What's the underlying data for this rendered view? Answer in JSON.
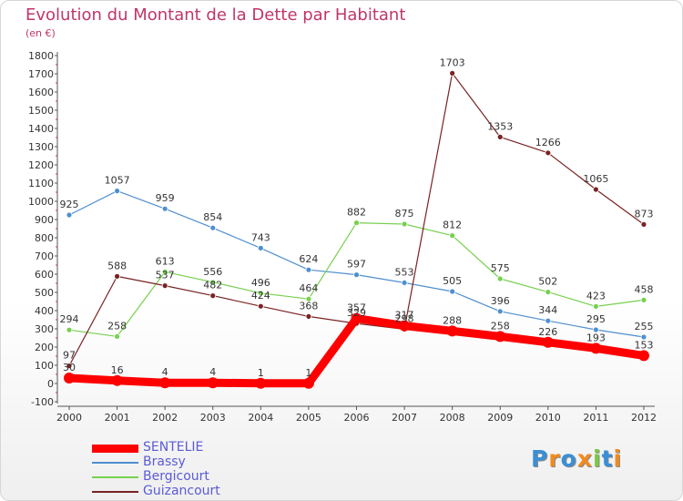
{
  "chart_data": {
    "type": "line",
    "title": "Evolution du Montant de la Dette par Habitant",
    "subtitle": "(en €)",
    "x": [
      "2000",
      "2001",
      "2002",
      "2003",
      "2004",
      "2005",
      "2006",
      "2007",
      "2008",
      "2009",
      "2010",
      "2011",
      "2012"
    ],
    "ylim": [
      -100,
      1800
    ],
    "yticks": [
      -100,
      0,
      100,
      200,
      300,
      400,
      500,
      600,
      700,
      800,
      900,
      1000,
      1100,
      1200,
      1300,
      1400,
      1500,
      1600,
      1700,
      1800
    ],
    "grid": false,
    "legend_position": "bottom-left",
    "series": [
      {
        "name": "SENTELIE",
        "color": "#ff0000",
        "values": [
          30,
          16,
          4,
          4,
          1,
          1,
          357,
          317,
          288,
          258,
          226,
          193,
          153
        ]
      },
      {
        "name": "Brassy",
        "color": "#4f8fd0",
        "values": [
          925,
          1057,
          959,
          854,
          743,
          624,
          597,
          553,
          505,
          396,
          344,
          295,
          255
        ]
      },
      {
        "name": "Bergicourt",
        "color": "#77d04f",
        "values": [
          294,
          258,
          613,
          556,
          496,
          464,
          882,
          875,
          812,
          575,
          502,
          423,
          458
        ]
      },
      {
        "name": "Guizancourt",
        "color": "#7a2222",
        "values": [
          97,
          588,
          537,
          482,
          424,
          368,
          329,
          298,
          1703,
          1353,
          1266,
          1065,
          873
        ]
      }
    ]
  },
  "brand": {
    "letters": [
      "P",
      "r",
      "o",
      "x",
      "i",
      "t",
      "i"
    ],
    "colors": [
      "#3a8fd6",
      "#f28a1e",
      "#3a8fd6",
      "#f28a1e",
      "#7ac943",
      "#3a8fd6",
      "#f28a1e"
    ]
  }
}
